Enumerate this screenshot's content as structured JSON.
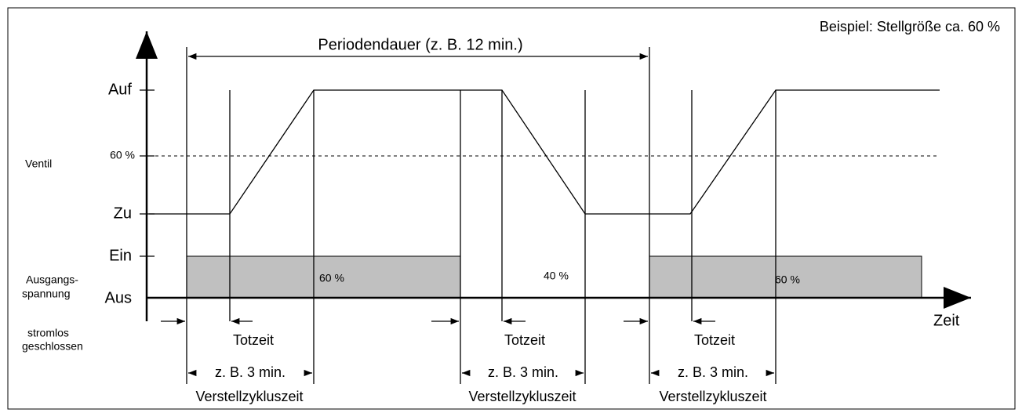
{
  "title": "Beispiel: Stellgröße ca. 60 %",
  "period": "Periodendauer (z. B. 12 min.)",
  "y_labels": {
    "auf": "Auf",
    "sixty": "60 %",
    "zu": "Zu",
    "ein": "Ein",
    "aus": "Aus"
  },
  "side_labels": {
    "ventil": "Ventil",
    "ausgang1": "Ausgangs-",
    "ausgang2": "spannung",
    "stromlos1": "stromlos",
    "stromlos2": "geschlossen"
  },
  "x_label": "Zeit",
  "bar_labels": [
    "60 %",
    "40 %",
    "60 %"
  ],
  "phases": [
    {
      "dead_time": "Totzeit",
      "cycle": "z. B. 3 min.",
      "cycle_name": "Verstellzykluszeit"
    },
    {
      "dead_time": "Totzeit",
      "cycle": "z. B. 3 min.",
      "cycle_name": "Verstellzykluszeit"
    },
    {
      "dead_time": "Totzeit",
      "cycle": "z. B. 3 min.",
      "cycle_name": "Verstellzykluszeit"
    }
  ]
}
